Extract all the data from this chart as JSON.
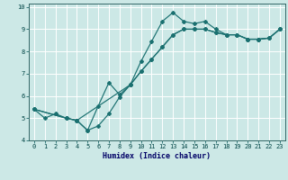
{
  "xlabel": "Humidex (Indice chaleur)",
  "xlim": [
    -0.5,
    23.5
  ],
  "ylim": [
    4,
    10.15
  ],
  "yticks": [
    4,
    5,
    6,
    7,
    8,
    9,
    10
  ],
  "xticks": [
    0,
    1,
    2,
    3,
    4,
    5,
    6,
    7,
    8,
    9,
    10,
    11,
    12,
    13,
    14,
    15,
    16,
    17,
    18,
    19,
    20,
    21,
    22,
    23
  ],
  "bg_color": "#cce8e6",
  "line_color": "#1a7070",
  "grid_color": "#b0d8d8",
  "line1_x": [
    0,
    1,
    2,
    3,
    4,
    5,
    6,
    7,
    8,
    9,
    10,
    11,
    12,
    13,
    14,
    15,
    16,
    17,
    18,
    19,
    20,
    21,
    22,
    23
  ],
  "line1_y": [
    5.4,
    5.0,
    5.2,
    5.0,
    4.9,
    4.45,
    4.65,
    5.2,
    5.95,
    6.5,
    7.55,
    8.45,
    9.35,
    9.75,
    9.35,
    9.25,
    9.35,
    9.0,
    8.75,
    8.75,
    8.55,
    8.55,
    8.6,
    9.0
  ],
  "line2_x": [
    0,
    3,
    4,
    9,
    10,
    11,
    12,
    13,
    14,
    15,
    16,
    17,
    18,
    19,
    20,
    21,
    22,
    23
  ],
  "line2_y": [
    5.4,
    5.0,
    4.9,
    6.5,
    7.1,
    7.65,
    8.2,
    8.75,
    9.0,
    9.0,
    9.0,
    8.85,
    8.75,
    8.75,
    8.55,
    8.55,
    8.6,
    9.0
  ],
  "line3_x": [
    0,
    3,
    4,
    5,
    6,
    7,
    8,
    9,
    10,
    11,
    12,
    13,
    14,
    15,
    16,
    17,
    18,
    19,
    20,
    21,
    22,
    23
  ],
  "line3_y": [
    5.4,
    5.0,
    4.9,
    4.45,
    5.55,
    6.6,
    6.05,
    6.5,
    7.1,
    7.65,
    8.2,
    8.75,
    9.0,
    9.0,
    9.0,
    8.85,
    8.75,
    8.75,
    8.55,
    8.55,
    8.6,
    9.0
  ]
}
